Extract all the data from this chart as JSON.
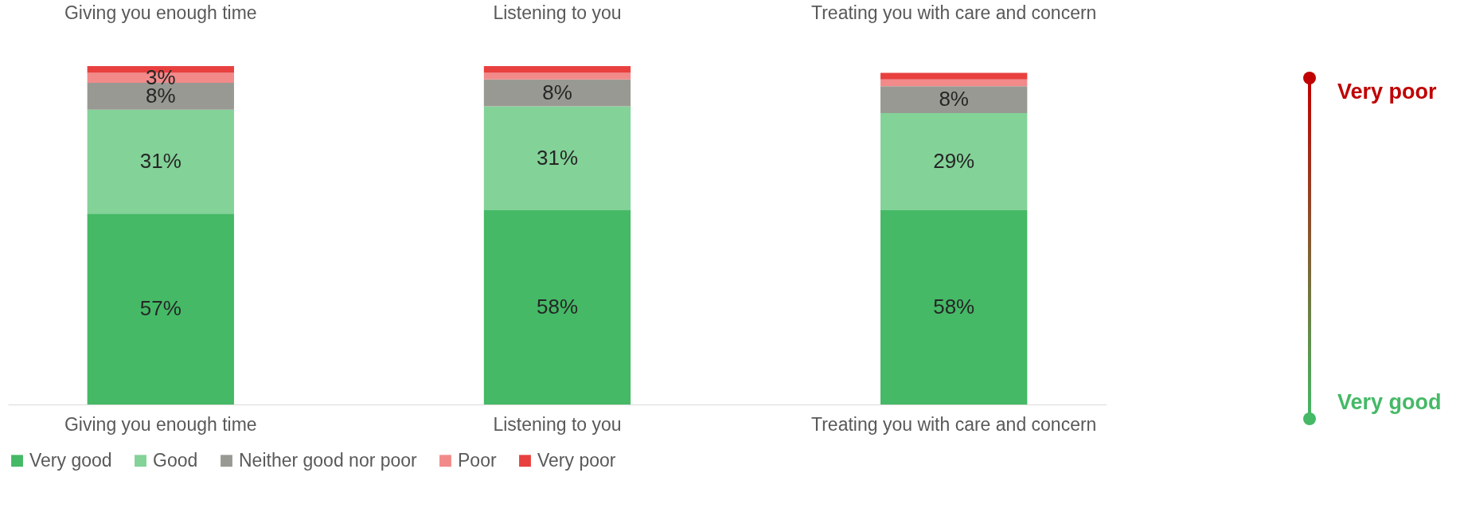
{
  "chart_data": {
    "type": "bar",
    "stacked": true,
    "categories": [
      "Giving you enough time",
      "Listening to you",
      "Treating you with care and concern"
    ],
    "series": [
      {
        "name": "Very good",
        "color": "#45b966",
        "values": [
          57,
          58,
          58
        ],
        "value_labels": [
          "57%",
          "58%",
          "58%"
        ]
      },
      {
        "name": "Good",
        "color": "#83d298",
        "values": [
          31,
          31,
          29
        ],
        "value_labels": [
          "31%",
          "31%",
          "29%"
        ]
      },
      {
        "name": "Neither good nor poor",
        "color": "#999993",
        "values": [
          8,
          8,
          8
        ],
        "value_labels": [
          "8%",
          "8%",
          "8%"
        ]
      },
      {
        "name": "Poor",
        "color": "#f28a8a",
        "values": [
          3,
          2,
          2
        ],
        "value_labels": [
          "3%",
          null,
          null
        ]
      },
      {
        "name": "Very poor",
        "color": "#e8403f",
        "values": [
          2,
          2,
          2
        ],
        "value_labels": [
          null,
          null,
          null
        ]
      }
    ],
    "legend": "bottom",
    "annotations": [
      "Very poor",
      "Very good"
    ]
  }
}
